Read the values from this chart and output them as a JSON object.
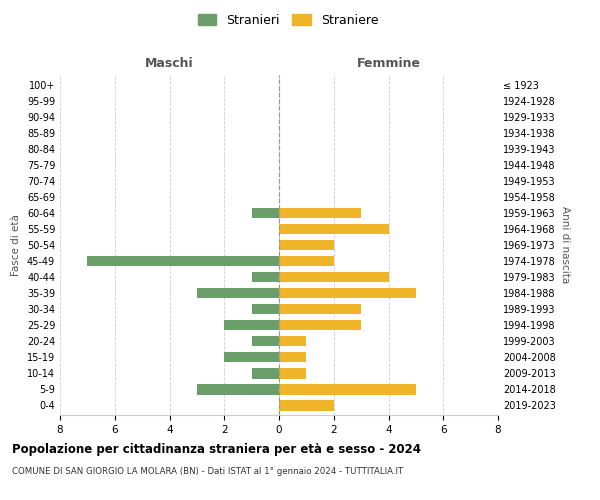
{
  "age_groups": [
    "0-4",
    "5-9",
    "10-14",
    "15-19",
    "20-24",
    "25-29",
    "30-34",
    "35-39",
    "40-44",
    "45-49",
    "50-54",
    "55-59",
    "60-64",
    "65-69",
    "70-74",
    "75-79",
    "80-84",
    "85-89",
    "90-94",
    "95-99",
    "100+"
  ],
  "birth_years": [
    "2019-2023",
    "2014-2018",
    "2009-2013",
    "2004-2008",
    "1999-2003",
    "1994-1998",
    "1989-1993",
    "1984-1988",
    "1979-1983",
    "1974-1978",
    "1969-1973",
    "1964-1968",
    "1959-1963",
    "1954-1958",
    "1949-1953",
    "1944-1948",
    "1939-1943",
    "1934-1938",
    "1929-1933",
    "1924-1928",
    "≤ 1923"
  ],
  "maschi": [
    0,
    3,
    1,
    2,
    1,
    2,
    1,
    3,
    1,
    7,
    0,
    0,
    1,
    0,
    0,
    0,
    0,
    0,
    0,
    0,
    0
  ],
  "femmine": [
    2,
    5,
    1,
    1,
    1,
    3,
    3,
    5,
    4,
    2,
    2,
    4,
    3,
    0,
    0,
    0,
    0,
    0,
    0,
    0,
    0
  ],
  "color_maschi": "#6b9e6b",
  "color_femmine": "#f0b429",
  "title": "Popolazione per cittadinanza straniera per età e sesso - 2024",
  "subtitle": "COMUNE DI SAN GIORGIO LA MOLARA (BN) - Dati ISTAT al 1° gennaio 2024 - TUTTITALIA.IT",
  "xlabel_left": "Maschi",
  "xlabel_right": "Femmine",
  "ylabel_left": "Fasce di età",
  "ylabel_right": "Anni di nascita",
  "legend_maschi": "Stranieri",
  "legend_femmine": "Straniere",
  "xlim": 8,
  "background_color": "#ffffff",
  "grid_color": "#cccccc"
}
